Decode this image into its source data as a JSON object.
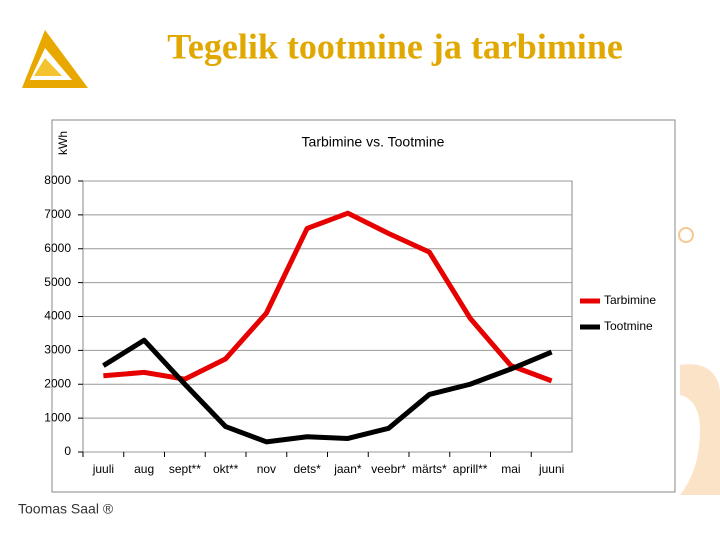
{
  "slide_title": "Tegelik tootmine ja tarbimine",
  "footer": "Toomas Saal ®",
  "chart_data": {
    "type": "line",
    "title": "Tarbimine vs. Tootmine",
    "y_label": "kWh",
    "categories": [
      "juuli",
      "aug",
      "sept**",
      "okt**",
      "nov",
      "dets*",
      "jaan*",
      "veebr*",
      "märts*",
      "aprill**",
      "mai",
      "juuni"
    ],
    "series": [
      {
        "name": "Tarbimine",
        "color": "#e60000",
        "values": [
          2250,
          2350,
          2150,
          2750,
          4100,
          6600,
          7050,
          6450,
          5900,
          3950,
          2550,
          2100
        ]
      },
      {
        "name": "Tootmine",
        "color": "#000000",
        "values": [
          2550,
          3300,
          2000,
          750,
          300,
          450,
          400,
          700,
          1700,
          2000,
          2450,
          2950
        ]
      }
    ],
    "ylim": [
      0,
      8000
    ],
    "yticks": [
      0,
      1000,
      2000,
      3000,
      4000,
      5000,
      6000,
      7000,
      8000
    ],
    "grid": true,
    "legend": "right"
  }
}
